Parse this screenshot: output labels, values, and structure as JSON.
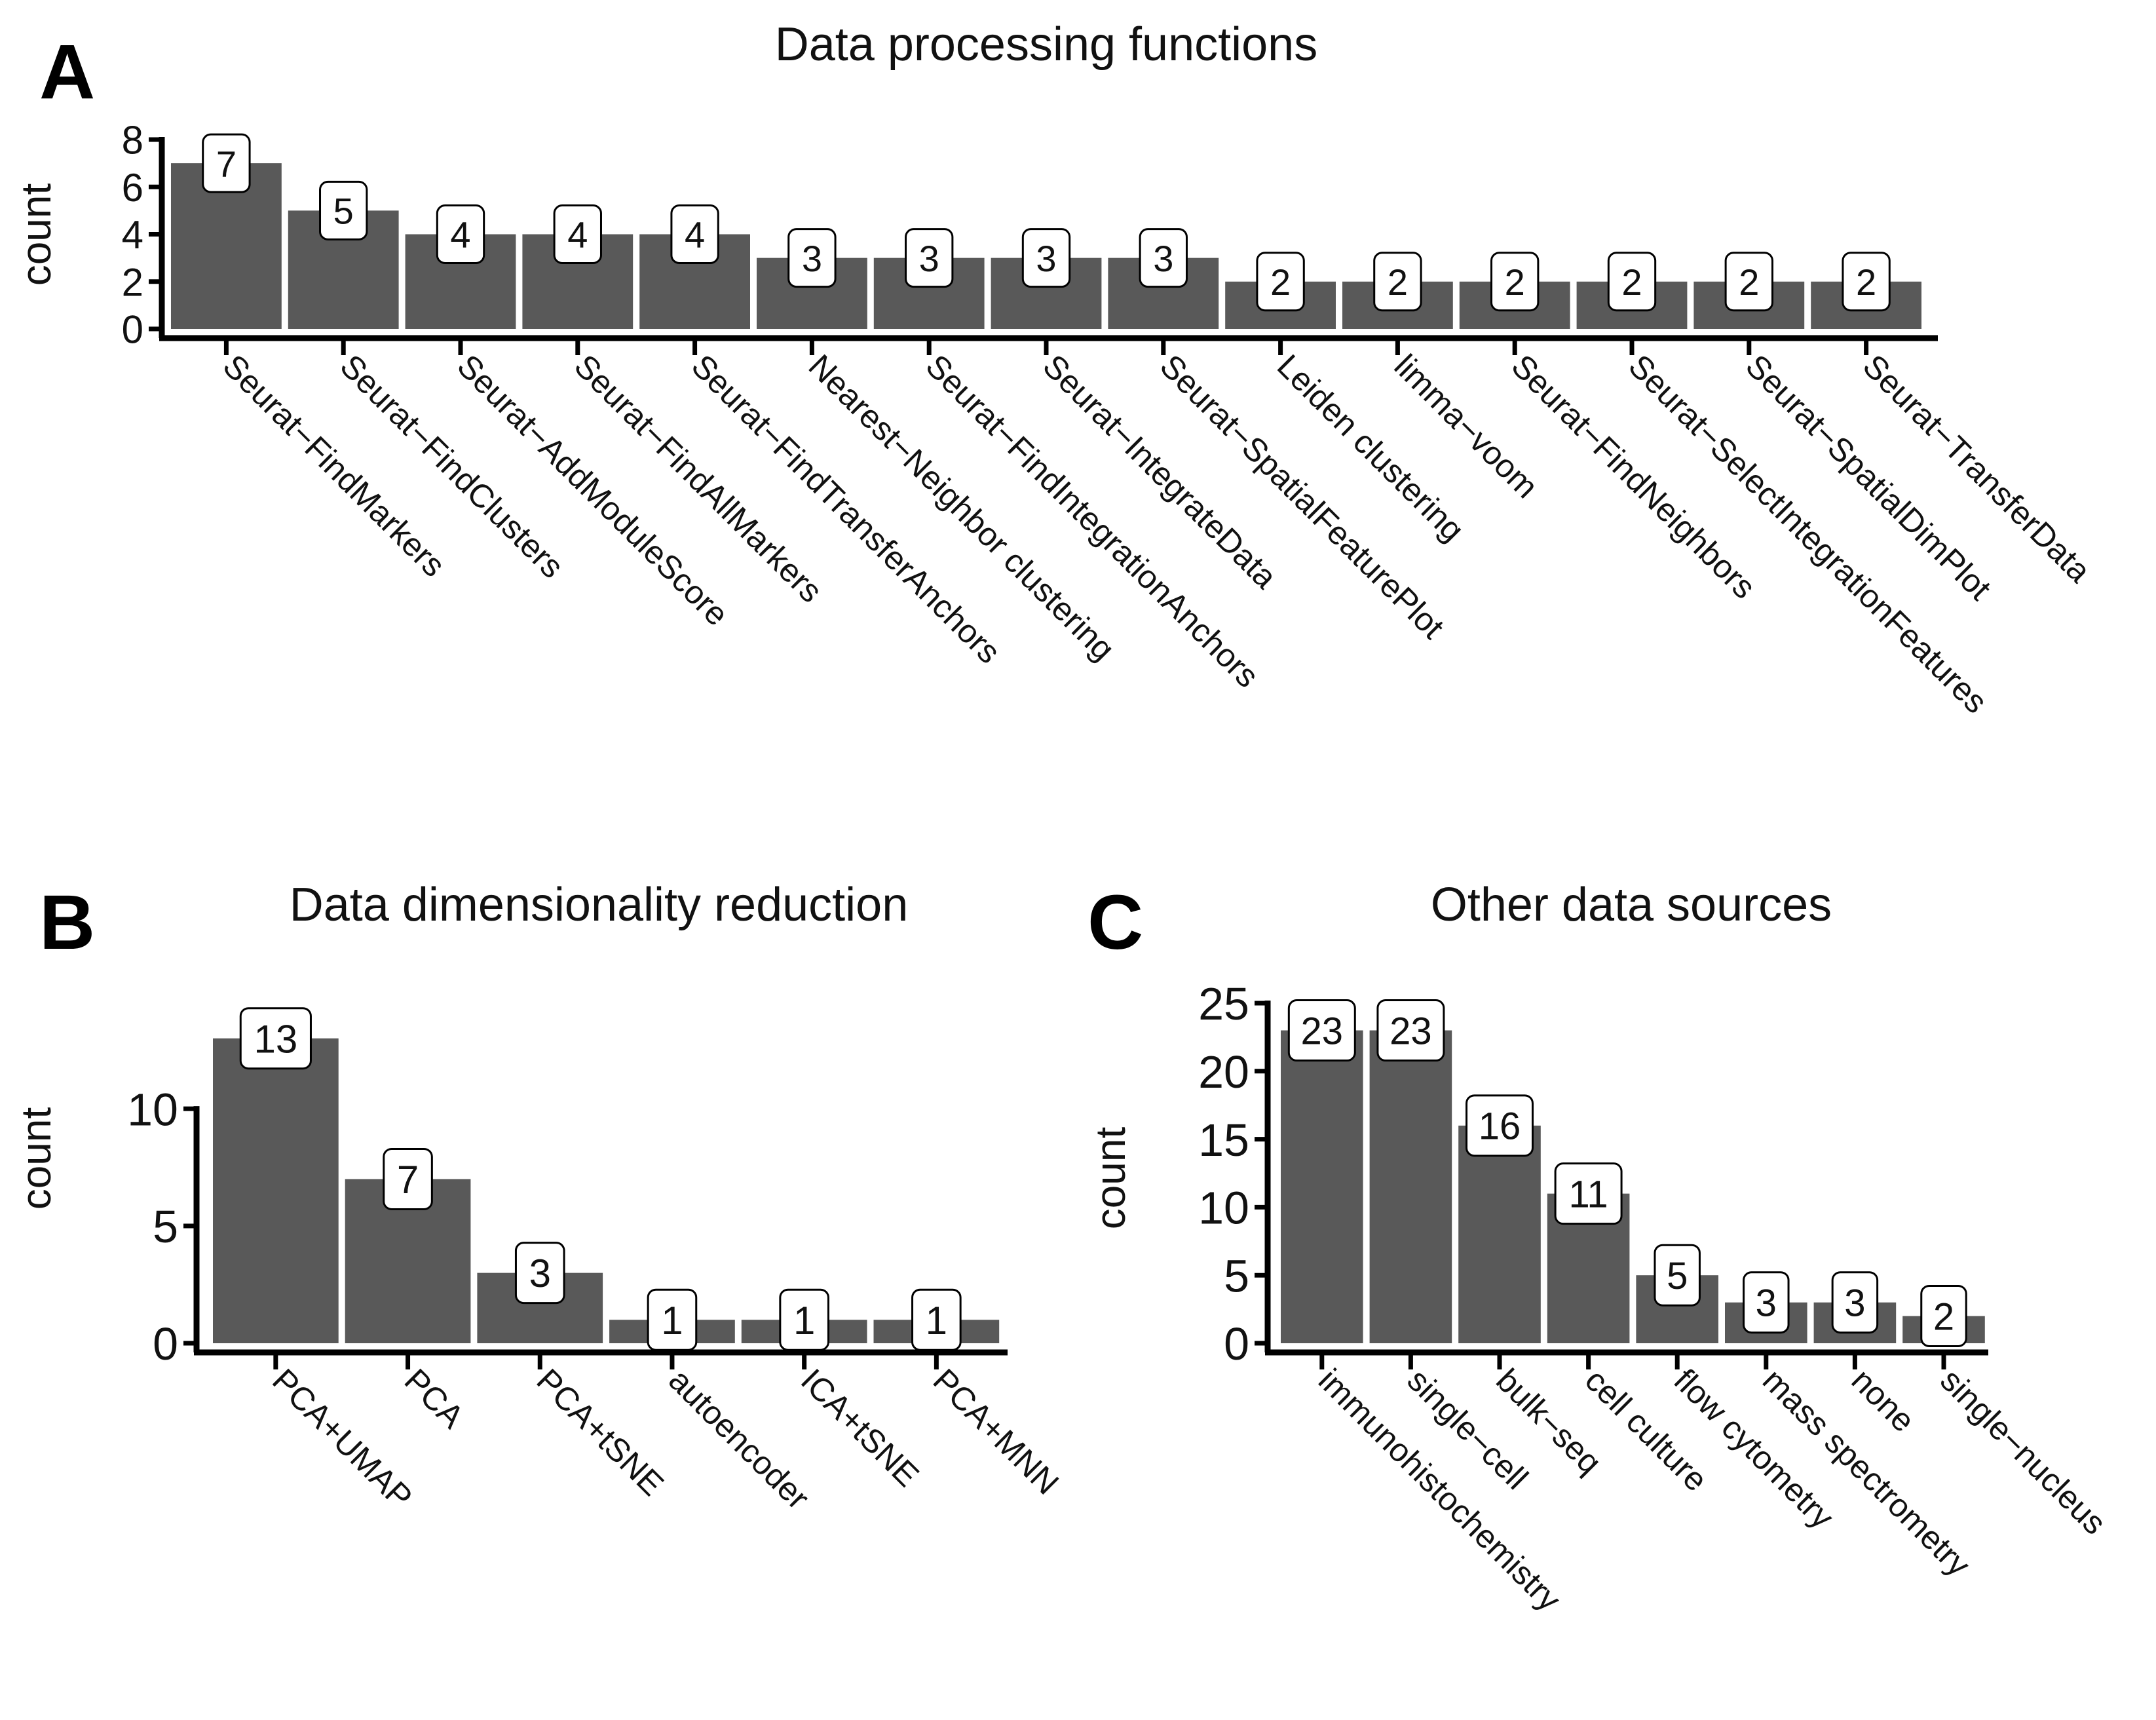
{
  "colors": {
    "bar": "#595959",
    "axis": "#000000",
    "label_box": "#ffffff"
  },
  "chart_data": [
    {
      "panel": "A",
      "type": "bar",
      "title": "Data processing functions",
      "ylabel": "count",
      "ylim": [
        0,
        8
      ],
      "yticks": [
        0,
        2,
        4,
        6,
        8
      ],
      "categories": [
        "Seurat−FindMarkers",
        "Seurat−FindClusters",
        "Seurat−AddModuleScore",
        "Seurat−FindAllMarkers",
        "Seurat−FindTransferAnchors",
        "Nearest−Neighbor clustering",
        "Seurat−FindIntegrationAnchors",
        "Seurat−IntegrateData",
        "Seurat−SpatialFeaturePlot",
        "Leiden clustering",
        "limma−voom",
        "Seurat−FindNeighbors",
        "Seurat−SelectIntegrationFeatures",
        "Seurat−SpatialDimPlot",
        "Seurat−TransferData"
      ],
      "values": [
        7,
        5,
        4,
        4,
        4,
        3,
        3,
        3,
        3,
        2,
        2,
        2,
        2,
        2,
        2
      ]
    },
    {
      "panel": "B",
      "type": "bar",
      "title": "Data dimensionality reduction",
      "ylabel": "count",
      "ylim": [
        0,
        14.5
      ],
      "yticks": [
        0,
        5,
        10
      ],
      "categories": [
        "PCA+UMAP",
        "PCA",
        "PCA+tSNE",
        "autoencoder",
        "ICA+tSNE",
        "PCA+MNN"
      ],
      "values": [
        13,
        7,
        3,
        1,
        1,
        1
      ]
    },
    {
      "panel": "C",
      "type": "bar",
      "title": "Other data sources",
      "ylabel": "count",
      "ylim": [
        0,
        25
      ],
      "yticks": [
        0,
        5,
        10,
        15,
        20,
        25
      ],
      "categories": [
        "immunohistochemistry",
        "single−cell",
        "bulk−seq",
        "cell culture",
        "flow cytometry",
        "mass spectrometry",
        "none",
        "single−nucleus"
      ],
      "values": [
        23,
        23,
        16,
        11,
        5,
        3,
        3,
        2
      ]
    }
  ]
}
